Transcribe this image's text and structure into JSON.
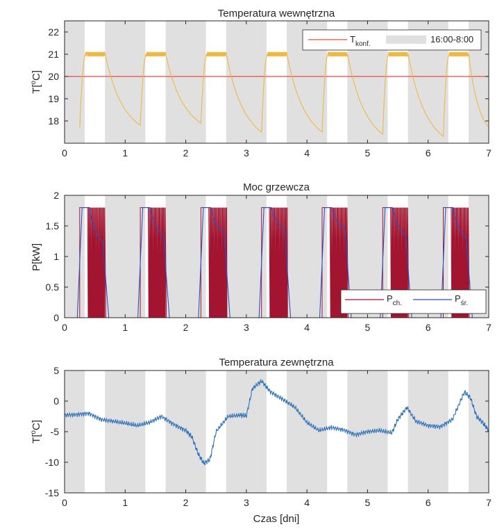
{
  "colors": {
    "shade": "#e0e0e0",
    "temp_line": "#f0b840",
    "conf_line": "#e64c3c",
    "p_ch": "#a2142f",
    "p_sr": "#2c4ec8",
    "ext_line": "#2d72b8",
    "axis": "#262626"
  },
  "chart_data": [
    {
      "id": "indoor",
      "type": "line",
      "title": "Temperatura wewnętrzna",
      "xlabel": "",
      "ylabel": "T[°C]",
      "ylabel_main": "T[",
      "ylabel_sup": "o",
      "ylabel_end": "C]",
      "xlim": [
        0,
        7
      ],
      "ylim": [
        17,
        22.5
      ],
      "xticks": [
        0,
        1,
        2,
        3,
        4,
        5,
        6,
        7
      ],
      "yticks": [
        18,
        19,
        20,
        21,
        22
      ],
      "night_bands": [
        [
          -0.0,
          0.333
        ],
        [
          0.667,
          1.333
        ],
        [
          1.667,
          2.333
        ],
        [
          2.667,
          3.333
        ],
        [
          3.667,
          4.333
        ],
        [
          4.667,
          5.333
        ],
        [
          5.667,
          6.333
        ],
        [
          6.667,
          7.0
        ]
      ],
      "constant_line": {
        "name": "T_konf.",
        "y": 20
      },
      "cycles": [
        {
          "start": 0.25,
          "end_min": 17.8
        },
        {
          "start": 1.25,
          "end_min": 17.9
        },
        {
          "start": 2.25,
          "end_min": 17.5
        },
        {
          "start": 3.25,
          "end_min": 17.5
        },
        {
          "start": 4.25,
          "end_min": 17.4
        },
        {
          "start": 5.25,
          "end_min": 17.3
        },
        {
          "start": 6.25,
          "end_min": 17.7
        }
      ],
      "legend": {
        "position": "top-right",
        "entries": [
          {
            "main": "T",
            "sub": "konf."
          },
          {
            "main": "16:00-8:00",
            "sub": ""
          }
        ]
      }
    },
    {
      "id": "power",
      "type": "line",
      "title": "Moc grzewcza",
      "xlabel": "",
      "ylabel": "P[kW]",
      "xlim": [
        0,
        7
      ],
      "ylim": [
        0,
        2
      ],
      "xticks": [
        0,
        1,
        2,
        3,
        4,
        5,
        6,
        7
      ],
      "yticks": [
        0,
        0.5,
        1,
        1.5,
        2
      ],
      "night_bands": [
        [
          -0.0,
          0.333
        ],
        [
          0.667,
          1.333
        ],
        [
          1.667,
          2.333
        ],
        [
          2.667,
          3.333
        ],
        [
          3.667,
          4.333
        ],
        [
          4.667,
          5.333
        ],
        [
          5.667,
          6.333
        ],
        [
          6.667,
          7.0
        ]
      ],
      "series": [
        {
          "name": "P_ch.",
          "max_kw": 1.8
        },
        {
          "name": "P_śr.",
          "max_kw": 1.8,
          "min_after_ramp": [
            1.25,
            1.35,
            1.4,
            1.45,
            1.45,
            1.35,
            1.3
          ]
        }
      ],
      "legend": {
        "position": "bottom-right",
        "entries": [
          {
            "main": "P",
            "sub": "ch."
          },
          {
            "main": "P",
            "sub": "śr."
          }
        ]
      }
    },
    {
      "id": "outdoor",
      "type": "line",
      "title": "Temperatura zewnętrzna",
      "xlabel": "Czas [dni]",
      "ylabel": "T[°C]",
      "ylabel_main": "T[",
      "ylabel_sup": "o",
      "ylabel_end": "C]",
      "xlim": [
        0,
        7
      ],
      "ylim": [
        -15,
        5
      ],
      "xticks": [
        0,
        1,
        2,
        3,
        4,
        5,
        6,
        7
      ],
      "yticks": [
        -15,
        -10,
        -5,
        0,
        5
      ],
      "night_bands": [
        [
          -0.0,
          0.333
        ],
        [
          0.667,
          1.333
        ],
        [
          1.667,
          2.333
        ],
        [
          2.667,
          3.333
        ],
        [
          3.667,
          4.333
        ],
        [
          4.667,
          5.333
        ],
        [
          5.667,
          6.333
        ],
        [
          6.667,
          7.0
        ]
      ],
      "x": [
        0,
        0.2,
        0.4,
        0.6,
        0.8,
        1.0,
        1.2,
        1.4,
        1.6,
        1.8,
        2.0,
        2.1,
        2.2,
        2.3,
        2.4,
        2.5,
        2.7,
        2.9,
        3.0,
        3.1,
        3.25,
        3.4,
        3.6,
        3.8,
        4.0,
        4.2,
        4.4,
        4.6,
        4.8,
        5.0,
        5.2,
        5.4,
        5.5,
        5.65,
        5.8,
        6.0,
        6.2,
        6.4,
        6.6,
        6.7,
        6.8,
        6.9,
        7.0
      ],
      "values": [
        -2.3,
        -2.2,
        -2.0,
        -3.0,
        -3.3,
        -3.6,
        -4.0,
        -3.5,
        -2.5,
        -3.8,
        -4.8,
        -5.8,
        -8.5,
        -10.2,
        -9.5,
        -5.0,
        -2.5,
        -2.3,
        -2.4,
        2.0,
        3.3,
        1.5,
        0.3,
        -1.0,
        -3.5,
        -4.8,
        -4.3,
        -4.7,
        -5.5,
        -5.0,
        -4.8,
        -5.2,
        -3.0,
        -1.0,
        -3.3,
        -4.0,
        -4.2,
        -3.0,
        1.5,
        0.5,
        -2.5,
        -3.5,
        -4.8
      ]
    }
  ]
}
